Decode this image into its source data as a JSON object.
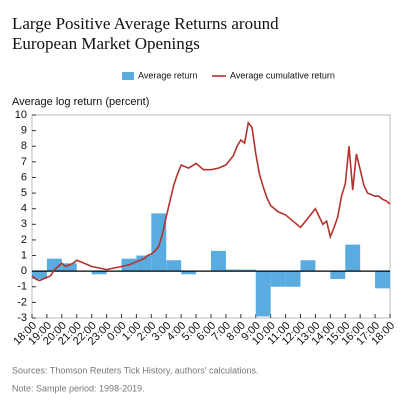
{
  "chart_data": {
    "type": "bar+line",
    "title": "Large Positive Average Returns around European Market Openings",
    "y_label": "Average log return (percent)",
    "source": "Sources: Thomson Reuters Tick History, authors' calculations.",
    "note": "Note: Sample period: 1998-2019.",
    "xlim": [
      0,
      24
    ],
    "xticks": [
      {
        "value": 0,
        "label": "18:00"
      },
      {
        "value": 1,
        "label": "19:00"
      },
      {
        "value": 2,
        "label": "20:00"
      },
      {
        "value": 3,
        "label": "21:00"
      },
      {
        "value": 4,
        "label": "22:00"
      },
      {
        "value": 5,
        "label": "23:00"
      },
      {
        "value": 6,
        "label": "0:00"
      },
      {
        "value": 7,
        "label": "1:00"
      },
      {
        "value": 8,
        "label": "2:00"
      },
      {
        "value": 9,
        "label": "3:00"
      },
      {
        "value": 10,
        "label": "4:00"
      },
      {
        "value": 11,
        "label": "5:00"
      },
      {
        "value": 12,
        "label": "6:00"
      },
      {
        "value": 13,
        "label": "7:00"
      },
      {
        "value": 14,
        "label": "8:00"
      },
      {
        "value": 15,
        "label": "9:00"
      },
      {
        "value": 16,
        "label": "10:00"
      },
      {
        "value": 17,
        "label": "11:00"
      },
      {
        "value": 18,
        "label": "12:00"
      },
      {
        "value": 19,
        "label": "13:00"
      },
      {
        "value": 20,
        "label": "14:00"
      },
      {
        "value": 21,
        "label": "15:00"
      },
      {
        "value": 22,
        "label": "16:00"
      },
      {
        "value": 23,
        "label": "17:00"
      },
      {
        "value": 24,
        "label": "18:00"
      }
    ],
    "ylim": [
      -3,
      10
    ],
    "yticks": [
      -3,
      -2,
      -1,
      0,
      1,
      2,
      3,
      4,
      5,
      6,
      7,
      8,
      9,
      10
    ],
    "bars": {
      "name": "Average return",
      "color": "#5aace0",
      "bins": [
        0,
        1,
        2,
        3,
        4,
        5,
        6,
        7,
        8,
        9,
        10,
        11,
        12,
        13,
        14,
        15,
        16,
        17,
        18,
        19,
        20,
        21,
        22,
        23,
        24
      ],
      "values": [
        -0.5,
        0.8,
        0.5,
        0,
        -0.2,
        0,
        0.8,
        1.0,
        3.7,
        0.7,
        -0.2,
        0,
        1.3,
        0.1,
        0.1,
        -2.9,
        -1.0,
        -1.0,
        0.7,
        0,
        -0.5,
        1.7,
        0,
        -1.1
      ]
    },
    "line": {
      "name": "Average cumulative return",
      "color": "#b5332e",
      "x": [
        0,
        0.25,
        0.5,
        0.75,
        1,
        1.25,
        1.5,
        1.75,
        2,
        2.25,
        2.5,
        2.75,
        3,
        3.25,
        3.5,
        3.75,
        4,
        4.5,
        5,
        5.5,
        6,
        6.5,
        7,
        7.25,
        7.5,
        7.75,
        8,
        8.25,
        8.5,
        8.75,
        9,
        9.25,
        9.5,
        9.75,
        10,
        10.5,
        11,
        11.5,
        12,
        12.5,
        13,
        13.5,
        13.75,
        14,
        14.25,
        14.5,
        14.75,
        15,
        15.25,
        15.5,
        15.75,
        16,
        16.5,
        17,
        17.5,
        18,
        18.5,
        19,
        19.25,
        19.5,
        19.75,
        20,
        20.25,
        20.5,
        20.75,
        21,
        21.25,
        21.5,
        21.75,
        22,
        22.25,
        22.5,
        22.75,
        23,
        23.25,
        23.5,
        23.75,
        24
      ],
      "values": [
        -0.3,
        -0.5,
        -0.6,
        -0.5,
        -0.4,
        -0.3,
        0.1,
        0.3,
        0.5,
        0.3,
        0.4,
        0.5,
        0.7,
        0.6,
        0.5,
        0.4,
        0.3,
        0.2,
        0.1,
        0.2,
        0.3,
        0.4,
        0.6,
        0.7,
        0.8,
        1.0,
        1.1,
        1.3,
        1.6,
        2.4,
        3.5,
        4.5,
        5.5,
        6.2,
        6.8,
        6.6,
        6.9,
        6.5,
        6.5,
        6.6,
        6.8,
        7.4,
        8.0,
        8.4,
        8.2,
        9.5,
        9.2,
        7.5,
        6.2,
        5.4,
        4.7,
        4.2,
        3.8,
        3.6,
        3.2,
        2.8,
        3.4,
        4.0,
        3.5,
        3.0,
        3.2,
        2.2,
        2.8,
        3.5,
        4.8,
        5.6,
        8.0,
        5.2,
        7.5,
        6.5,
        5.5,
        5.0,
        4.9,
        4.8,
        4.8,
        4.6,
        4.5,
        4.3
      ]
    }
  }
}
